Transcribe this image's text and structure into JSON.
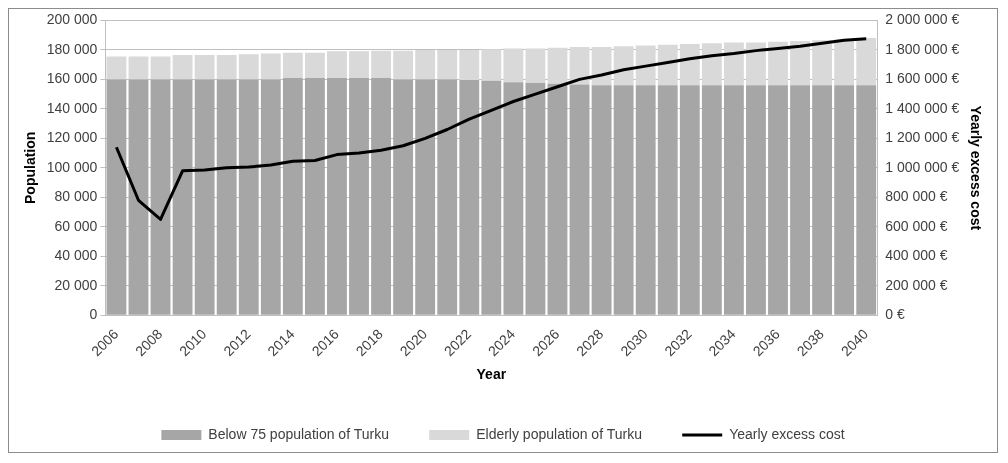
{
  "chart_data": {
    "type": "bar",
    "stacked": true,
    "xlabel": "Year",
    "ylabel": "Population",
    "y2label": "Yearly excess cost",
    "categories": [
      "2006",
      null,
      "2008",
      null,
      "2010",
      null,
      "2012",
      null,
      "2014",
      null,
      "2016",
      null,
      "2018",
      null,
      "2020",
      null,
      "2022",
      null,
      "2024",
      null,
      "2026",
      null,
      "2028",
      null,
      "2030",
      null,
      "2032",
      null,
      "2034",
      null,
      "2036",
      null,
      "2038",
      null,
      "2040"
    ],
    "series": [
      {
        "name": "Below 75 population of Turku",
        "color": "#a6a6a6",
        "values": [
          160000,
          160000,
          160000,
          160000,
          160000,
          160000,
          160000,
          160000,
          161000,
          161000,
          161000,
          161000,
          161000,
          160000,
          160000,
          160000,
          159500,
          159000,
          158000,
          157500,
          157000,
          156500,
          156000,
          156000,
          156000,
          156000,
          156000,
          156000,
          156000,
          156000,
          156000,
          156000,
          156000,
          156000,
          156000
        ]
      },
      {
        "name": "Elderly population of Turku",
        "color": "#d9d9d9",
        "values": [
          15500,
          15500,
          15500,
          16500,
          16500,
          16500,
          17000,
          17500,
          17000,
          17000,
          18000,
          18000,
          18500,
          19500,
          20000,
          20000,
          20500,
          21500,
          23000,
          23500,
          24500,
          25500,
          26000,
          26500,
          27000,
          27500,
          28000,
          28500,
          29000,
          29000,
          29500,
          30000,
          30500,
          31000,
          32000
        ]
      },
      {
        "name": "Yearly excess cost",
        "type": "line",
        "axis": "y2",
        "color": "#000000",
        "values": [
          1140000,
          780000,
          650000,
          980000,
          985000,
          1000000,
          1005000,
          1020000,
          1045000,
          1050000,
          1090000,
          1100000,
          1120000,
          1150000,
          1200000,
          1260000,
          1330000,
          1390000,
          1450000,
          1500000,
          1550000,
          1600000,
          1630000,
          1665000,
          1690000,
          1715000,
          1740000,
          1760000,
          1775000,
          1795000,
          1810000,
          1825000,
          1845000,
          1865000,
          1875000
        ]
      }
    ],
    "ylim": [
      0,
      200000
    ],
    "yticks": [
      0,
      {
        "value": 20000,
        "label": "20 000"
      },
      {
        "value": 40000,
        "label": "40 000"
      },
      {
        "value": 60000,
        "label": "60 000"
      },
      {
        "value": 80000,
        "label": "80 000"
      },
      {
        "value": 100000,
        "label": "100 000"
      },
      {
        "value": 120000,
        "label": "120 000"
      },
      {
        "value": 140000,
        "label": "140 000"
      },
      {
        "value": 160000,
        "label": "160 000"
      },
      {
        "value": 180000,
        "label": "180 000"
      },
      {
        "value": 200000,
        "label": "200 000"
      }
    ],
    "y2lim": [
      0,
      2000000
    ],
    "y2ticks": [
      {
        "value": 0,
        "label": "0 €"
      },
      {
        "value": 200000,
        "label": "200 000 €"
      },
      {
        "value": 400000,
        "label": "400 000 €"
      },
      {
        "value": 600000,
        "label": "600 000 €"
      },
      {
        "value": 800000,
        "label": "800 000 €"
      },
      {
        "value": 1000000,
        "label": "1 000 000 €"
      },
      {
        "value": 1200000,
        "label": "1 200 000 €"
      },
      {
        "value": 1400000,
        "label": "1 400 000 €"
      },
      {
        "value": 1600000,
        "label": "1 600 000 €"
      },
      {
        "value": 1800000,
        "label": "1 800 000 €"
      },
      {
        "value": 2000000,
        "label": "2 000 000 €"
      }
    ],
    "grid": "y",
    "legend": "bottom",
    "marker": "none",
    "line_style": "solid"
  }
}
